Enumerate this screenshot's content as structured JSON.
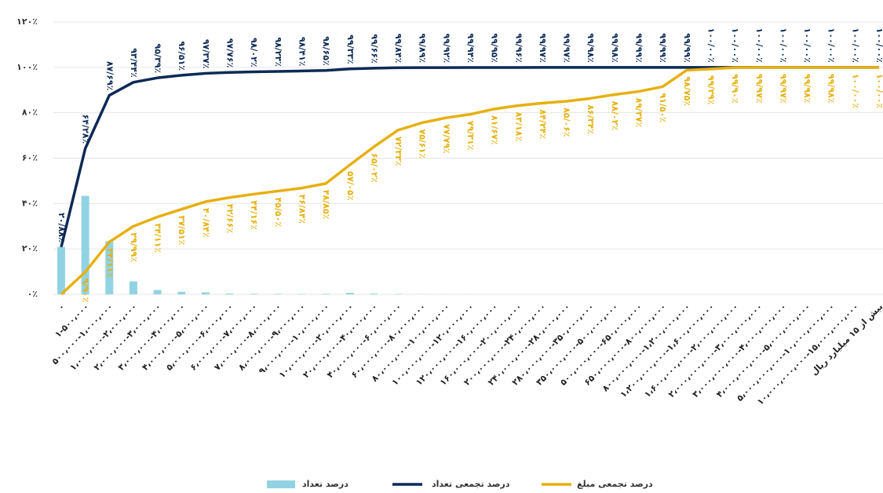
{
  "chart_data": {
    "type": "combo",
    "categories": [
      "۰",
      "۱-۵۰۰،۰۰۰",
      "۵۰۰،۰۰۰-۱،۰۰۰،۰۰۰",
      "۱،۰۰۰،۰۰۰-۲،۰۰۰،۰۰۰",
      "۲،۰۰۰،۰۰۰-۳،۰۰۰،۰۰۰",
      "۳،۰۰۰،۰۰۰-۴،۰۰۰،۰۰۰",
      "۴،۰۰۰،۰۰۰-۵،۰۰۰،۰۰۰",
      "۵،۰۰۰،۰۰۰-۶،۰۰۰،۰۰۰",
      "۶،۰۰۰،۰۰۰-۷،۰۰۰،۰۰۰",
      "۷،۰۰۰،۰۰۰-۸،۰۰۰،۰۰۰",
      "۸،۰۰۰،۰۰۰-۹،۰۰۰،۰۰۰",
      "۹،۰۰۰،۰۰۰-۱۰،۰۰۰،۰۰۰",
      "۱۰،۰۰۰،۰۰۰-۲۰،۰۰۰،۰۰۰",
      "۲۰،۰۰۰،۰۰۰-۴۰،۰۰۰،۰۰۰",
      "۴۰،۰۰۰،۰۰۰-۶۰،۰۰۰،۰۰۰",
      "۶۰،۰۰۰،۰۰۰-۸۰،۰۰۰،۰۰۰",
      "۸۰،۰۰۰،۰۰۰-۱۰۰،۰۰۰،۰۰۰",
      "۱۰۰،۰۰۰،۰۰۰-۱۲۰،۰۰۰،۰۰۰",
      "۱۲۰،۰۰۰،۰۰۰-۱۶۰،۰۰۰،۰۰۰",
      "۱۶۰،۰۰۰،۰۰۰-۲۰۰،۰۰۰،۰۰۰",
      "۲۰۰،۰۰۰،۰۰۰-۲۴۰،۰۰۰،۰۰۰",
      "۲۴۰،۰۰۰،۰۰۰-۲۸۰،۰۰۰،۰۰۰",
      "۲۸۰،۰۰۰،۰۰۰-۳۵۰،۰۰۰،۰۰۰",
      "۳۵۰،۰۰۰،۰۰۰-۵۰۰،۰۰۰،۰۰۰",
      "۵۰۰،۰۰۰،۰۰۰-۶۵۰،۰۰۰،۰۰۰",
      "۶۵۰،۰۰۰،۰۰۰-۸۰۰،۰۰۰،۰۰۰",
      "۸۰۰،۰۰۰،۰۰۰-۱،۲۰۰،۰۰۰،۰۰۰",
      "۱،۲۰۰،۰۰۰،۰۰۰-۱،۶۰۰،۰۰۰،۰۰۰",
      "۱،۶۰۰،۰۰۰،۰۰۰-۲،۰۰۰،۰۰۰،۰۰۰",
      "۲،۰۰۰،۰۰۰،۰۰۰-۳،۰۰۰،۰۰۰،۰۰۰",
      "۳،۰۰۰،۰۰۰،۰۰۰-۴،۰۰۰،۰۰۰،۰۰۰",
      "۴،۰۰۰،۰۰۰،۰۰۰-۵،۰۰۰،۰۰۰،۰۰۰",
      "۵،۰۰۰،۰۰۰،۰۰۰-۱۰،۰۰۰،۰۰۰،۰۰۰",
      "۱۰،۰۰۰،۰۰۰،۰۰۰-۱۵،۰۰۰،۰۰۰،۰۰۰",
      "بیش از ۱۵ میلیارد ریال"
    ],
    "series": [
      {
        "name": "درصد تعداد",
        "type": "bar",
        "color": "#92d3e3",
        "values": [
          20.88,
          43.4,
          23.41,
          5.75,
          1.95,
          1.12,
          0.86,
          0.39,
          0.26,
          0.21,
          0.18,
          0.24,
          0.68,
          0.33,
          0.18,
          0.05,
          0.03,
          0.02,
          0.01,
          0.01,
          0.01,
          0.005,
          0.01,
          0.005,
          0.01,
          0.003,
          0.003,
          0.01,
          0.002,
          0.001,
          0,
          0,
          0,
          0,
          0
        ]
      },
      {
        "name": "درصد تجمعی تعداد",
        "type": "line",
        "color": "#0d2a56",
        "values": [
          20.88,
          64.28,
          87.69,
          93.44,
          95.39,
          96.51,
          97.37,
          97.76,
          98.02,
          98.23,
          98.41,
          98.65,
          99.33,
          99.66,
          99.84,
          99.89,
          99.92,
          99.94,
          99.95,
          99.96,
          99.97,
          99.97,
          99.98,
          99.98,
          99.99,
          99.99,
          99.99,
          100,
          100,
          100,
          100,
          100,
          100,
          100,
          100
        ],
        "value_labels": [
          "۲۰/۸۸٪",
          "۶۴/۲۸٪",
          "۸۷/۶۹٪",
          "۹۳/۴۴٪",
          "۹۵/۳۹٪",
          "۹۶/۵۱٪",
          "۹۷/۳۷٪",
          "۹۷/۷۶٪",
          "۹۸/۰۲٪",
          "۹۸/۲۳٪",
          "۹۸/۴۱٪",
          "۹۸/۶۵٪",
          "۹۹/۳۳٪",
          "۹۹/۶۶٪",
          "۹۹/۸۴٪",
          "۹۹/۸۹٪",
          "۹۹/۹۲٪",
          "۹۹/۹۴٪",
          "۹۹/۹۵٪",
          "۹۹/۹۶٪",
          "۹۹/۹۷٪",
          "۹۹/۹۷٪",
          "۹۹/۹۸٪",
          "۹۹/۹۸٪",
          "۹۹/۹۹٪",
          "۹۹/۹۹٪",
          "۹۹/۹۹٪",
          "۱۰۰/۰۰٪",
          "۱۰۰/۰۰٪",
          "۱۰۰/۰۰٪",
          "۱۰۰/۰۰٪",
          "۱۰۰/۰۰٪",
          "۱۰۰/۰۰٪",
          "۱۰۰/۰۰٪",
          "۱۰۰/۰۰٪"
        ]
      },
      {
        "name": "درصد تجمعی مبلغ",
        "type": "line",
        "color": "#e6b00f",
        "values": [
          0,
          9.9,
          23.11,
          29.99,
          34.11,
          37.51,
          40.84,
          42.66,
          44.16,
          45.5,
          46.84,
          48.85,
          57.05,
          65.02,
          72.33,
          75.61,
          77.79,
          79.31,
          81.67,
          83.18,
          84.24,
          85.06,
          86.34,
          88.02,
          89.37,
          91.5,
          98.75,
          99.29,
          99.9,
          99.97,
          99.97,
          99.98,
          99.98,
          100,
          100
        ],
        "value_labels": [
          null,
          "۹/۹۰٪",
          "۲۳/۱۱٪",
          "۲۹/۹۹٪",
          "۳۴/۱۱٪",
          "۳۷/۵۱٪",
          "۴۰/۸۴٪",
          "۴۲/۶۶٪",
          "۴۴/۱۶٪",
          "۴۵/۵۰٪",
          "۴۶/۸۴٪",
          "۴۸/۸۵٪",
          "۵۷/۰۵٪",
          "۶۵/۰۲٪",
          "۷۲/۳۳٪",
          "۷۵/۶۱٪",
          "۷۷/۷۹٪",
          "۷۹/۳۱٪",
          "۸۱/۶۷٪",
          "۸۳/۱۸٪",
          "۸۴/۲۴٪",
          "۸۵/۰۶٪",
          "۸۶/۳۴٪",
          "۸۸/۰۲٪",
          "۸۹/۳۷٪",
          "۹۱/۵۰٪",
          "۹۸/۷۵٪",
          "۹۹/۲۹٪",
          "۹۹/۹۰٪",
          "۹۹/۹۷٪",
          "۹۹/۹۷٪",
          "۹۹/۹۸٪",
          "۹۹/۹۸٪",
          "۱۰۰/۰۰٪",
          "۱۰۰/۰۰٪"
        ]
      }
    ],
    "ylim": [
      0,
      120
    ],
    "yticks": [
      {
        "value": 0,
        "label": "۰٪"
      },
      {
        "value": 20,
        "label": "۲۰٪"
      },
      {
        "value": 40,
        "label": "۴۰٪"
      },
      {
        "value": 60,
        "label": "۶۰٪"
      },
      {
        "value": 80,
        "label": "۸۰٪"
      },
      {
        "value": 100,
        "label": "۱۰۰٪"
      },
      {
        "value": 120,
        "label": "۱۲۰٪"
      }
    ],
    "grid": true,
    "legend": "bottom"
  }
}
